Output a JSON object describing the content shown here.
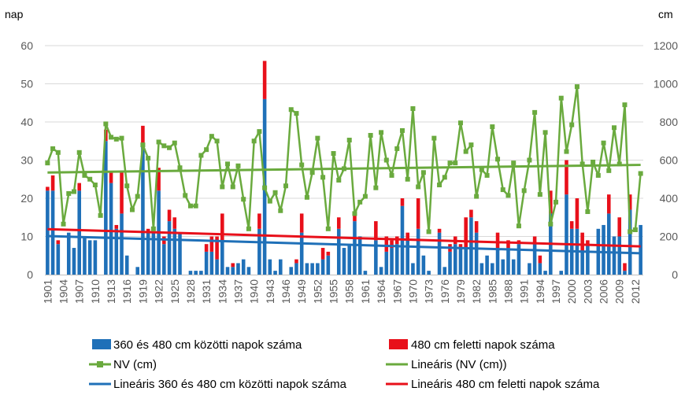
{
  "chart_data": {
    "type": "bar",
    "title": "",
    "y_left_label": "nap",
    "y_right_label": "cm",
    "ylim_left": [
      0,
      60
    ],
    "ylim_right": [
      0,
      1200
    ],
    "yticks_left": [
      "0",
      "10",
      "20",
      "30",
      "40",
      "50",
      "60"
    ],
    "yticks_right": [
      "0",
      "200",
      "400",
      "600",
      "800",
      "1000",
      "1200"
    ],
    "x_start": 1901,
    "x_end": 2013,
    "xtick_labels": [
      "1901",
      "1904",
      "1907",
      "1910",
      "1913",
      "1916",
      "1919",
      "1922",
      "1925",
      "1928",
      "1931",
      "1934",
      "1937",
      "1940",
      "1943",
      "1946",
      "1949",
      "1952",
      "1955",
      "1958",
      "1961",
      "1964",
      "1967",
      "1970",
      "1973",
      "1976",
      "1979",
      "1982",
      "1985",
      "1988",
      "1991",
      "1994",
      "1997",
      "2000",
      "2003",
      "2006",
      "2009",
      "2012"
    ],
    "grid": true,
    "legend_position": "bottom",
    "colors": {
      "blue_bar": "#1f70b8",
      "red_bar": "#e8101a",
      "nv_line": "#6aaa3e",
      "trend_nv": "#6aaa3e",
      "trend_blue": "#1f70b8",
      "trend_red": "#e8101a"
    },
    "series": [
      {
        "name": "360 és 480 cm közötti napok száma",
        "kind": "bar",
        "axis": "left",
        "values": [
          22,
          22,
          8,
          0,
          11,
          7,
          22,
          10,
          9,
          9,
          0,
          35,
          24,
          12,
          16,
          5,
          0,
          2,
          34,
          11,
          11,
          22,
          8,
          14,
          12,
          11,
          0,
          1,
          1,
          1,
          6,
          6,
          4,
          9,
          2,
          2,
          3,
          4,
          2,
          0,
          12,
          46,
          4,
          1,
          4,
          0,
          2,
          3,
          11,
          3,
          3,
          3,
          4,
          5,
          0,
          12,
          7,
          8,
          14,
          10,
          1,
          0,
          9,
          2,
          6,
          7,
          8,
          18,
          9,
          3,
          12,
          5,
          1,
          0,
          11,
          2,
          6,
          8,
          7,
          7,
          15,
          11,
          3,
          5,
          3,
          7,
          4,
          7,
          4,
          8,
          0,
          3,
          8,
          3,
          1,
          16,
          0,
          1,
          21,
          12,
          12,
          6,
          8,
          0,
          12,
          13,
          16,
          10,
          10,
          1,
          17,
          0,
          13
        ],
        "stack_on": null
      },
      {
        "name": "480 cm feletti napok száma",
        "kind": "bar",
        "axis": "left",
        "values": [
          1,
          4,
          1,
          0,
          0,
          0,
          2,
          0,
          0,
          0,
          0,
          3,
          3,
          1,
          11,
          0,
          0,
          0,
          5,
          1,
          0,
          6,
          2,
          3,
          3,
          0,
          0,
          0,
          0,
          0,
          2,
          4,
          6,
          7,
          0,
          1,
          0,
          0,
          0,
          0,
          4,
          10,
          0,
          0,
          0,
          0,
          0,
          1,
          5,
          0,
          0,
          0,
          3,
          1,
          0,
          3,
          0,
          0,
          2,
          0,
          0,
          0,
          5,
          0,
          4,
          2,
          2,
          2,
          2,
          0,
          8,
          0,
          0,
          0,
          1,
          0,
          2,
          2,
          1,
          8,
          2,
          3,
          0,
          0,
          0,
          4,
          0,
          2,
          0,
          1,
          0,
          0,
          2,
          2,
          0,
          6,
          0,
          0,
          9,
          2,
          8,
          5,
          1,
          0,
          0,
          0,
          5,
          0,
          5,
          2,
          4,
          0,
          0
        ]
      },
      {
        "name": "NV (cm)",
        "kind": "line",
        "axis": "right",
        "values": [
          585,
          660,
          640,
          265,
          425,
          435,
          640,
          520,
          500,
          470,
          310,
          790,
          720,
          710,
          715,
          465,
          340,
          410,
          680,
          610,
          240,
          695,
          675,
          665,
          690,
          560,
          415,
          360,
          360,
          625,
          655,
          725,
          700,
          460,
          580,
          460,
          570,
          395,
          240,
          700,
          750,
          455,
          385,
          430,
          335,
          465,
          865,
          845,
          575,
          405,
          535,
          715,
          510,
          240,
          635,
          495,
          555,
          705,
          320,
          380,
          410,
          730,
          455,
          745,
          600,
          520,
          660,
          755,
          500,
          870,
          460,
          535,
          225,
          715,
          470,
          510,
          585,
          585,
          795,
          645,
          680,
          410,
          550,
          520,
          775,
          605,
          445,
          415,
          585,
          255,
          440,
          600,
          850,
          420,
          745,
          265,
          380,
          925,
          645,
          785,
          985,
          580,
          330,
          590,
          520,
          690,
          545,
          770,
          580,
          890,
          225,
          235,
          530
        ]
      },
      {
        "name": "Lineáris (NV (cm))",
        "kind": "trend",
        "axis": "right",
        "values": [
          535,
          575
        ]
      },
      {
        "name": "Lineáris 360 és 480 cm közötti napok száma",
        "kind": "trend",
        "axis": "left",
        "values": [
          10.1,
          5.6
        ]
      },
      {
        "name": "Lineáris 480 cm feletti napok száma",
        "kind": "trend",
        "axis": "left",
        "values": [
          11.9,
          7.4
        ]
      }
    ]
  }
}
